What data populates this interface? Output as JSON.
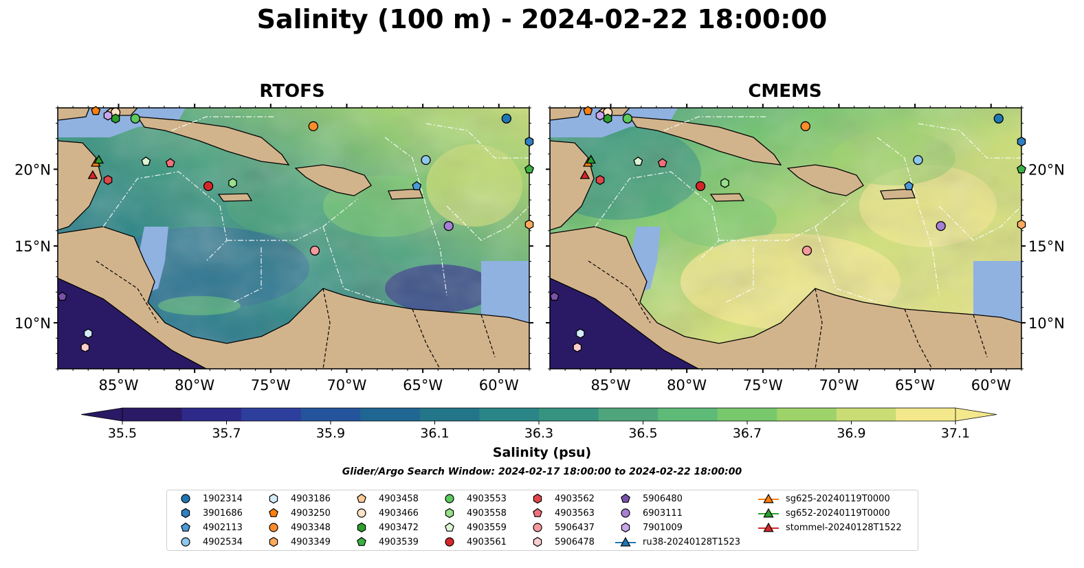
{
  "title": "Salinity (100 m) - 2024-02-22 18:00:00",
  "panels": [
    {
      "title": "RTOFS"
    },
    {
      "title": "CMEMS"
    }
  ],
  "colorbar": {
    "label": "Salinity (psu)",
    "ticks": [
      "35.5",
      "35.7",
      "35.9",
      "36.1",
      "36.3",
      "36.5",
      "36.7",
      "36.9",
      "37.1"
    ],
    "colors": [
      "#2a1a65",
      "#2e2a8a",
      "#2d3e9c",
      "#24549c",
      "#1f6692",
      "#237589",
      "#2a8686",
      "#36937f",
      "#4ea57c",
      "#5ebb77",
      "#78c96c",
      "#9ed36a",
      "#c9dd74",
      "#f4e88d"
    ],
    "min": 35.5,
    "max": 37.1
  },
  "axes": {
    "lon_ticks": [
      "85°W",
      "80°W",
      "75°W",
      "70°W",
      "65°W",
      "60°W"
    ],
    "lat_ticks": [
      "20°N",
      "15°N",
      "10°N"
    ]
  },
  "search_window": "Glider/Argo Search Window: 2024-02-17 18:00:00 to 2024-02-22 18:00:00",
  "legend": [
    {
      "label": "1902314",
      "shape": "circle",
      "color": "#1f77b4"
    },
    {
      "label": "3901686",
      "shape": "hexagon",
      "color": "#2f7fc1"
    },
    {
      "label": "4902113",
      "shape": "pentagon",
      "color": "#4a9ad6"
    },
    {
      "label": "4902534",
      "shape": "circle",
      "color": "#8ec6ec"
    },
    {
      "label": "4903186",
      "shape": "hexagon",
      "color": "#d4ecfa"
    },
    {
      "label": "4903250",
      "shape": "pentagon",
      "color": "#ff7f0e"
    },
    {
      "label": "4903348",
      "shape": "circle",
      "color": "#ff8c2a"
    },
    {
      "label": "4903349",
      "shape": "hexagon",
      "color": "#ffa95c"
    },
    {
      "label": "4903458",
      "shape": "pentagon",
      "color": "#ffcc99"
    },
    {
      "label": "4903466",
      "shape": "circle",
      "color": "#ffe3c6"
    },
    {
      "label": "4903472",
      "shape": "hexagon",
      "color": "#2ca02c"
    },
    {
      "label": "4903539",
      "shape": "pentagon",
      "color": "#3cb043"
    },
    {
      "label": "4903553",
      "shape": "circle",
      "color": "#5cc95c"
    },
    {
      "label": "4903558",
      "shape": "hexagon",
      "color": "#98df8a"
    },
    {
      "label": "4903559",
      "shape": "pentagon",
      "color": "#dcf5d4"
    },
    {
      "label": "4903561",
      "shape": "circle",
      "color": "#d62728"
    },
    {
      "label": "4903562",
      "shape": "hexagon",
      "color": "#e0474b"
    },
    {
      "label": "4903563",
      "shape": "pentagon",
      "color": "#f0707a"
    },
    {
      "label": "5906437",
      "shape": "circle",
      "color": "#f5999b"
    },
    {
      "label": "5906478",
      "shape": "hexagon",
      "color": "#fbcdcd"
    },
    {
      "label": "5906480",
      "shape": "pentagon",
      "color": "#7b52ab"
    },
    {
      "label": "6903111",
      "shape": "circle",
      "color": "#a77fd4"
    },
    {
      "label": "7901009",
      "shape": "hexagon",
      "color": "#c8a6ea"
    },
    {
      "label": "ru38-20240128T1523",
      "shape": "triangle-line",
      "color": "#1f77b4"
    },
    {
      "label": "sg625-20240119T0000",
      "shape": "triangle-line",
      "color": "#ff7f0e"
    },
    {
      "label": "sg652-20240119T0000",
      "shape": "triangle-line",
      "color": "#2ca02c"
    },
    {
      "label": "stommel-20240128T1522",
      "shape": "triangle-line",
      "color": "#d62728"
    }
  ],
  "chart_data": {
    "type": "heatmap",
    "variable": "Salinity",
    "units": "psu",
    "depth_m": 100,
    "time": "2024-02-22 18:00:00",
    "lon_range": [
      -89,
      -58
    ],
    "lat_range": [
      7,
      24
    ],
    "color_range": [
      35.5,
      37.1
    ],
    "models": [
      "RTOFS",
      "CMEMS"
    ],
    "observations": [
      {
        "id": "1902314",
        "lon": -59.5,
        "lat": 23.3
      },
      {
        "id": "3901686",
        "lon": -58,
        "lat": 21.8
      },
      {
        "id": "4902113",
        "lon": -65.4,
        "lat": 18.9
      },
      {
        "id": "4902534",
        "lon": -64.8,
        "lat": 20.6
      },
      {
        "id": "4903186",
        "lon": -87,
        "lat": 9.3
      },
      {
        "id": "4903250",
        "lon": -86.5,
        "lat": 23.8
      },
      {
        "id": "4903348",
        "lon": -72.2,
        "lat": 22.8
      },
      {
        "id": "4903349",
        "lon": -58,
        "lat": 16.4
      },
      {
        "id": "4903458",
        "lon": -85.5,
        "lat": 23.7
      },
      {
        "id": "4903466",
        "lon": -85.2,
        "lat": 23.7
      },
      {
        "id": "4903472",
        "lon": -85.2,
        "lat": 23.3
      },
      {
        "id": "4903539",
        "lon": -58,
        "lat": 20.0
      },
      {
        "id": "4903553",
        "lon": -83.9,
        "lat": 23.3
      },
      {
        "id": "4903558",
        "lon": -77.5,
        "lat": 19.1
      },
      {
        "id": "4903559",
        "lon": -83.2,
        "lat": 20.5
      },
      {
        "id": "4903561",
        "lon": -79.1,
        "lat": 18.9
      },
      {
        "id": "4903562",
        "lon": -85.7,
        "lat": 19.3
      },
      {
        "id": "4903563",
        "lon": -81.6,
        "lat": 20.4
      },
      {
        "id": "5906437",
        "lon": -72.1,
        "lat": 14.7
      },
      {
        "id": "5906478",
        "lon": -87.2,
        "lat": 8.4
      },
      {
        "id": "5906480",
        "lon": -88.7,
        "lat": 11.7
      },
      {
        "id": "6903111",
        "lon": -63.3,
        "lat": 16.3
      },
      {
        "id": "7901009",
        "lon": -85.7,
        "lat": 23.5
      },
      {
        "id": "sg625-20240119T0000",
        "lon": -86.5,
        "lat": 20.4
      },
      {
        "id": "sg652-20240119T0000",
        "lon": -86.3,
        "lat": 20.6
      },
      {
        "id": "stommel-20240128T1522",
        "lon": -86.7,
        "lat": 19.6
      }
    ]
  }
}
